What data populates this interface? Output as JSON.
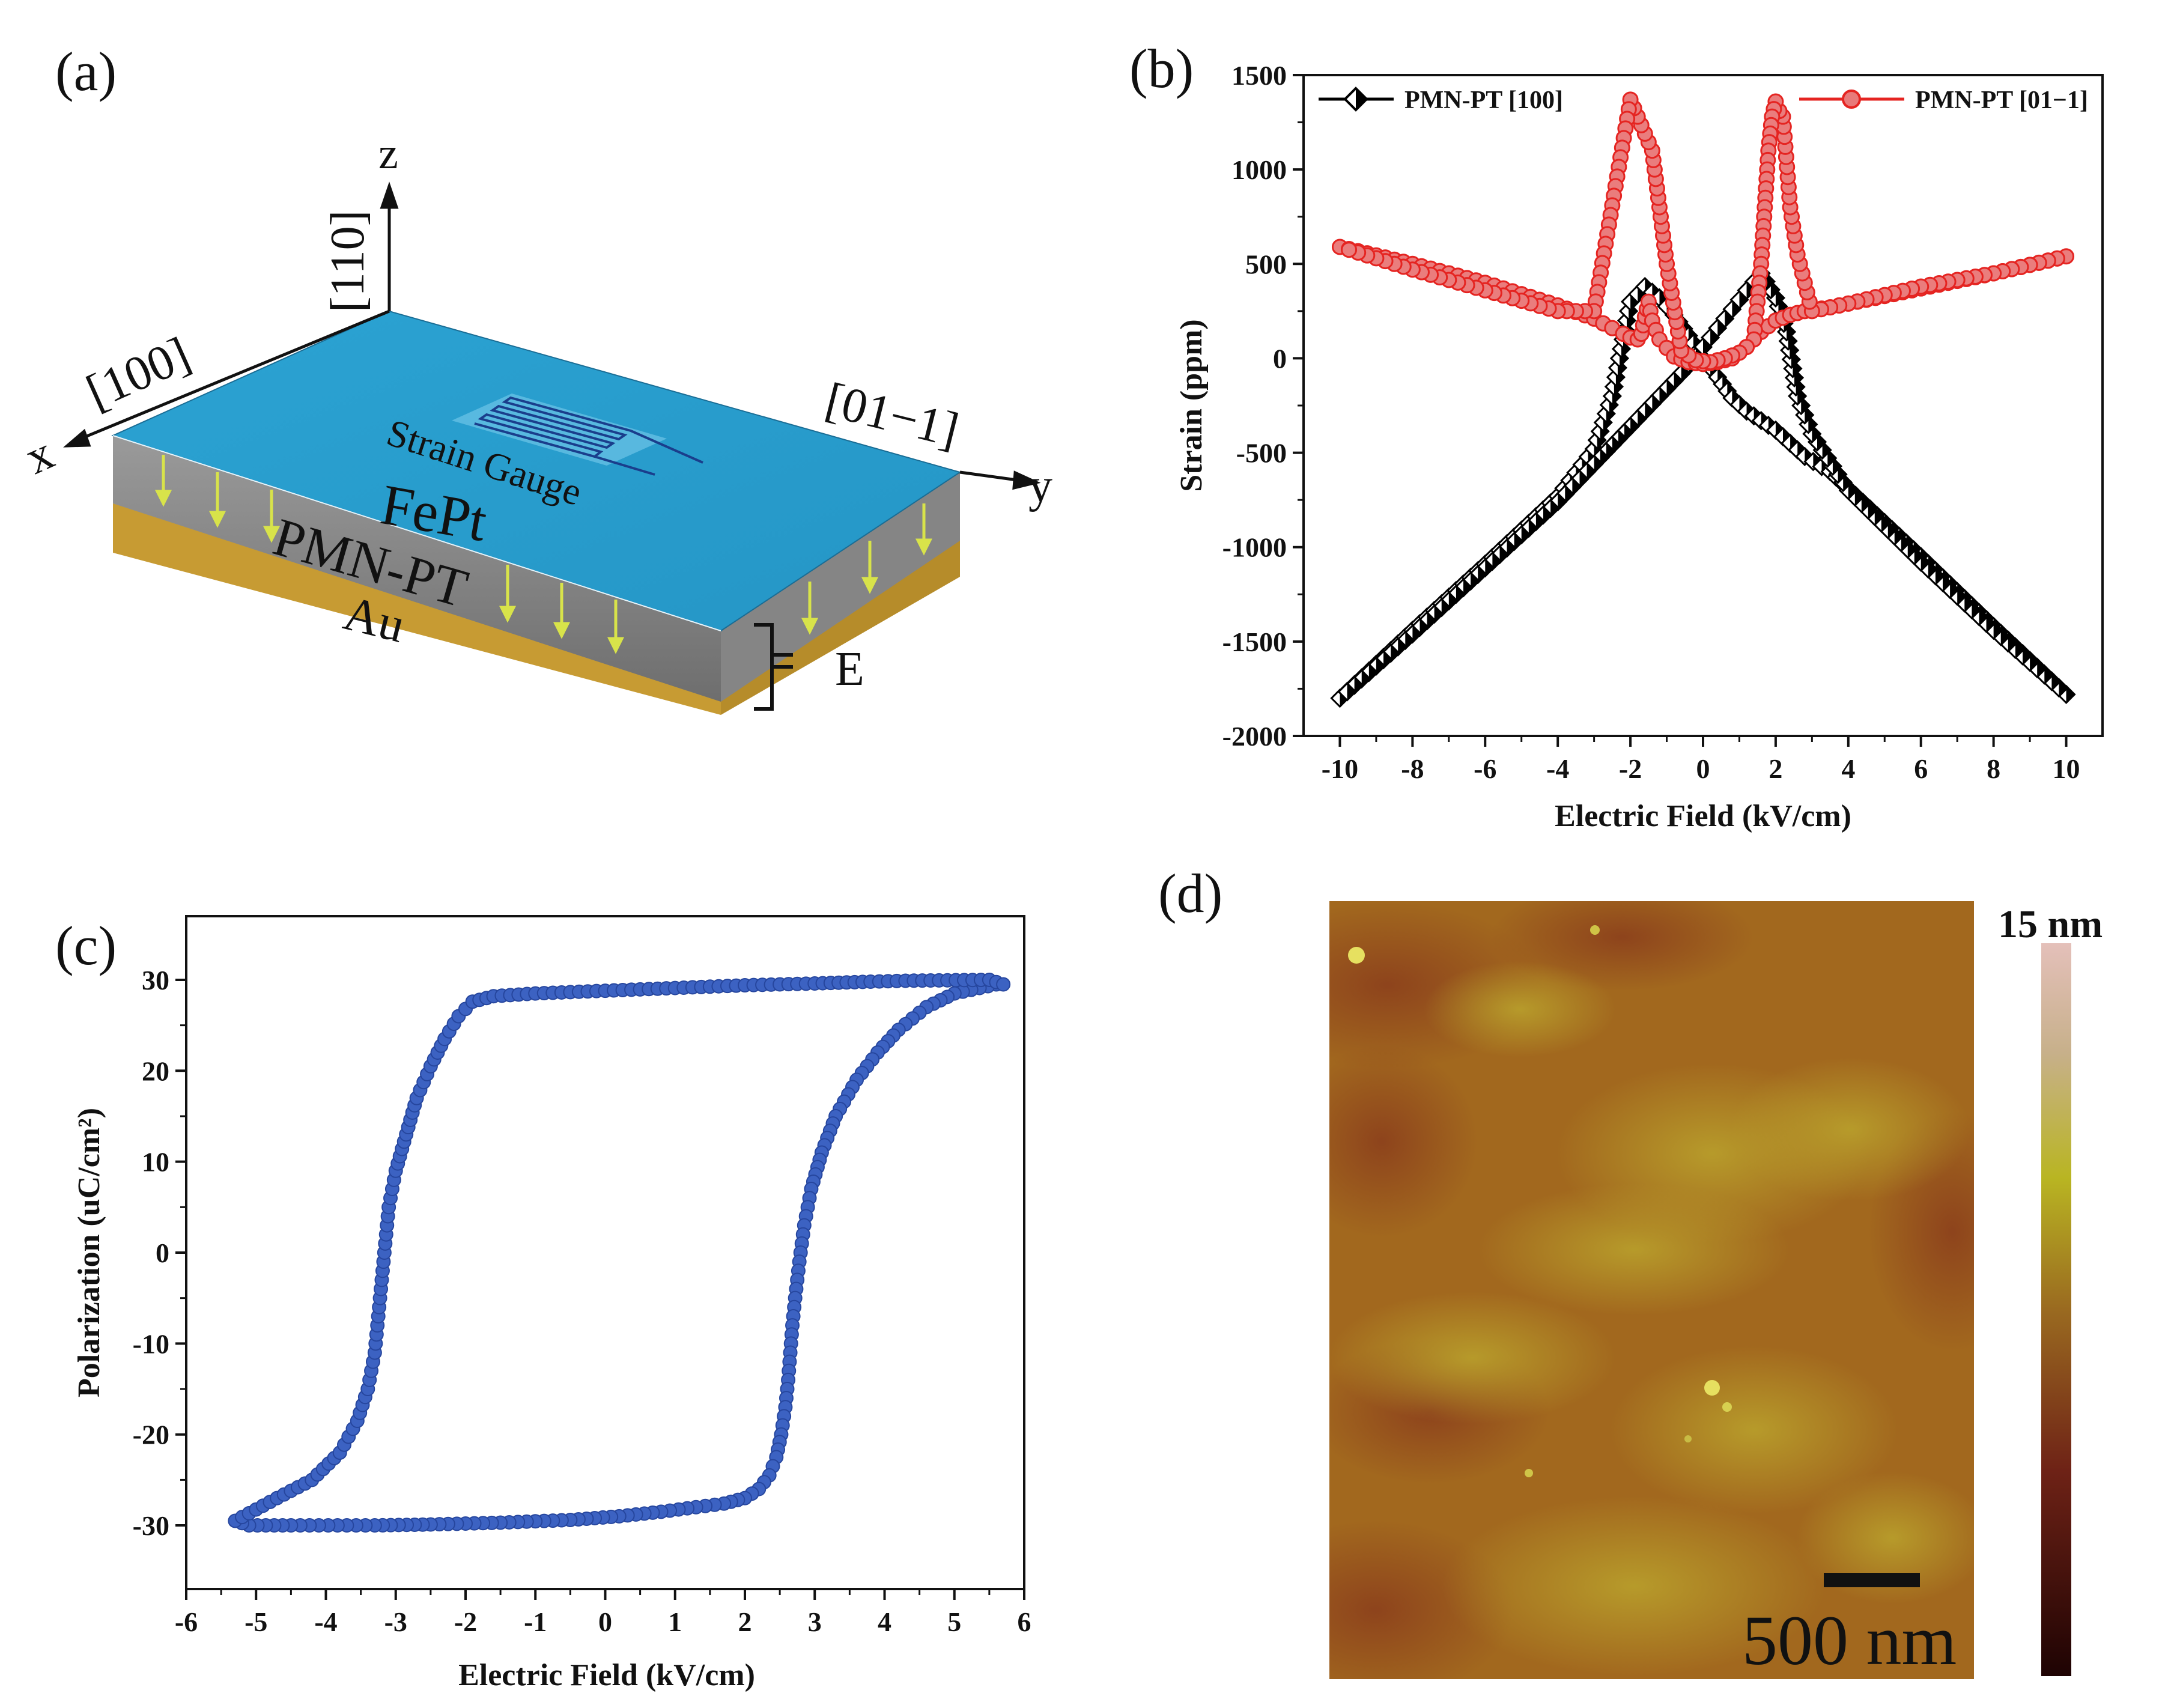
{
  "panels": {
    "a": {
      "label": "(a)",
      "axes": {
        "z": "z",
        "x": "x",
        "y": "y"
      },
      "directions": {
        "z_dir": "[110]",
        "x_dir": "[100]",
        "y_dir": "[01−1]"
      },
      "layers": {
        "top": "FePt",
        "middle": "PMN-PT",
        "bottom": "Au"
      },
      "gauge_label": "Strain Gauge",
      "field_label": "E",
      "colors": {
        "top": "#2ba3d3",
        "side": "#8b8b8b",
        "gold": "#c9a13b",
        "arrow": "#d8e34a",
        "gauge": "#1a3e8c",
        "gauge_text": "#e8402a"
      }
    },
    "b": {
      "label": "(b)"
    },
    "c": {
      "label": "(c)"
    },
    "d": {
      "label": "(d)",
      "scale_bar": "500 nm",
      "colorbar_max": "15 nm",
      "colors": {
        "base": "#a06a1e",
        "light": "#b89a2a",
        "dark": "#8a3a1a",
        "cb_top": "#e0b8b0",
        "cb_mid": "#b8b020",
        "cb_low": "#6a1a14",
        "cb_bottom": "#200404"
      }
    }
  },
  "chart_data": [
    {
      "panel": "b",
      "type": "line",
      "title": "",
      "xlabel": "Electric Field (kV/cm)",
      "ylabel": "Strain (ppm)",
      "xlim": [
        -11,
        11
      ],
      "ylim": [
        -2000,
        1500
      ],
      "xticks": [
        -10,
        -8,
        -6,
        -4,
        -2,
        0,
        2,
        4,
        6,
        8,
        10
      ],
      "yticks": [
        -2000,
        -1500,
        -1000,
        -500,
        0,
        500,
        1000,
        1500
      ],
      "legend_position": "top",
      "series": [
        {
          "name": "PMN-PT [100]",
          "color": "#000000",
          "marker": "diamond-half",
          "x": [
            -10,
            -8,
            -6,
            -4,
            -3,
            -2.5,
            -2,
            -1.6,
            -1.2,
            -0.8,
            -0.4,
            0,
            0.4,
            0.8,
            1.2,
            1.6,
            2.0,
            2.4,
            2.8,
            3.5,
            4,
            6,
            8,
            10,
            8,
            6,
            4,
            3,
            2.6,
            2.3,
            2.0,
            1.6,
            1.2,
            0.8,
            0.4,
            0,
            -0.4,
            -0.8,
            -1.2,
            -1.6,
            -2.0,
            -2.5,
            -3,
            -4,
            -6,
            -8,
            -10
          ],
          "y": [
            -1800,
            -1440,
            -1090,
            -730,
            -480,
            -200,
            300,
            380,
            320,
            230,
            120,
            0,
            -100,
            -210,
            -280,
            -330,
            -380,
            -450,
            -520,
            -600,
            -690,
            -1050,
            -1420,
            -1780,
            -1440,
            -1080,
            -700,
            -400,
            -200,
            140,
            320,
            450,
            360,
            260,
            160,
            60,
            -40,
            -120,
            -200,
            -280,
            -360,
            -460,
            -560,
            -760,
            -1110,
            -1460,
            -1800
          ]
        },
        {
          "name": "PMN-PT [01−1]",
          "color": "#e52421",
          "marker": "circle",
          "x": [
            -10,
            -8,
            -6,
            -4,
            -3,
            -2.5,
            -2.2,
            -2.0,
            -1.8,
            -1.7,
            -1.6,
            -1.5,
            -1.4,
            -1.2,
            -0.8,
            -0.4,
            0,
            0.4,
            0.8,
            1.2,
            1.6,
            2.0,
            2.4,
            2.8,
            3.5,
            4,
            6,
            8,
            10,
            8,
            6,
            4,
            3,
            2.6,
            2.4,
            2.2,
            2.1,
            2.0,
            1.9,
            1.8,
            1.6,
            1.4,
            1.2,
            1.0,
            0.6,
            0.2,
            -0.2,
            -0.6,
            -1.0,
            -1.4,
            -2,
            -3,
            -4,
            -6,
            -8,
            -10
          ],
          "y": [
            590,
            500,
            400,
            280,
            210,
            160,
            130,
            110,
            100,
            130,
            220,
            300,
            200,
            100,
            10,
            -20,
            -30,
            -20,
            0,
            60,
            140,
            200,
            230,
            250,
            270,
            290,
            370,
            450,
            540,
            450,
            380,
            290,
            250,
            550,
            800,
            1280,
            1310,
            1360,
            1280,
            1100,
            500,
            100,
            60,
            30,
            0,
            -20,
            -10,
            40,
            500,
            1100,
            1370,
            250,
            250,
            360,
            470,
            590
          ]
        }
      ]
    },
    {
      "panel": "c",
      "type": "scatter",
      "title": "",
      "xlabel": "Electric Field (kV/cm)",
      "ylabel": "Polarization (uC/cm²)",
      "xlim": [
        -6,
        6
      ],
      "ylim": [
        -37,
        37
      ],
      "xticks": [
        -6,
        -5,
        -4,
        -3,
        -2,
        -1,
        0,
        1,
        2,
        3,
        4,
        5,
        6
      ],
      "yticks": [
        -30,
        -20,
        -10,
        0,
        10,
        20,
        30
      ],
      "series": [
        {
          "name": "P-E loop",
          "color": "#2f55b5",
          "x": [
            5.6,
            5.0,
            4.6,
            4.2,
            3.9,
            3.6,
            3.3,
            3.1,
            2.95,
            2.85,
            2.78,
            2.72,
            2.68,
            2.65,
            2.62,
            2.58,
            2.52,
            2.45,
            2.35,
            2.2,
            2.0,
            1.7,
            1.3,
            0.8,
            0.2,
            -0.5,
            -1.5,
            -2.5,
            -3.3,
            -3.7,
            -4.1,
            -4.5,
            -5.1,
            -5.3,
            -4.7,
            -4.2,
            -3.8,
            -3.55,
            -3.4,
            -3.3,
            -3.25,
            -3.2,
            -3.15,
            -3.1,
            -3.0,
            -2.85,
            -2.7,
            -2.5,
            -2.3,
            -2.1,
            -1.9,
            -1.6,
            -1.0,
            0,
            1.0,
            2.0,
            3.0,
            3.8,
            4.3,
            5.5,
            5.7
          ],
          "y": [
            29.5,
            28.5,
            27,
            24.5,
            22,
            19,
            15,
            11,
            7,
            3,
            -1,
            -5,
            -8,
            -11,
            -14,
            -17,
            -20,
            -22.5,
            -24.5,
            -26,
            -27,
            -27.6,
            -28,
            -28.5,
            -29,
            -29.4,
            -29.7,
            -29.9,
            -30,
            -30,
            -30,
            -30,
            -30,
            -29.5,
            -27,
            -25,
            -22,
            -18.5,
            -15,
            -11,
            -7,
            -3,
            1,
            5,
            9,
            13,
            17,
            20.5,
            23.5,
            26,
            27.6,
            28.2,
            28.5,
            28.8,
            29.1,
            29.4,
            29.6,
            29.8,
            29.9,
            30,
            29.5
          ]
        }
      ]
    }
  ]
}
